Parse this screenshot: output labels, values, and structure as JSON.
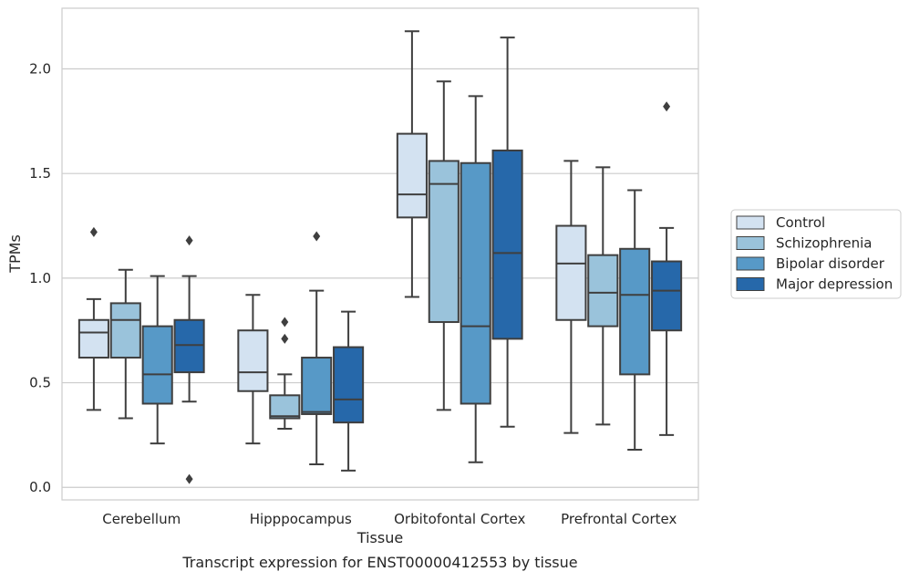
{
  "chart_data": {
    "type": "box",
    "title": "",
    "caption": "Transcript expression for ENST00000412553 by tissue",
    "xlabel": "Tissue",
    "ylabel": "TPMs",
    "ylim": [
      -0.06,
      2.29
    ],
    "yticks": [
      0.0,
      0.5,
      1.0,
      1.5,
      2.0
    ],
    "ytick_labels": [
      "0.0",
      "0.5",
      "1.0",
      "1.5",
      "2.0"
    ],
    "grid": "horizontal",
    "legend_position": "right",
    "categories": [
      "Cerebellum",
      "Hipppocampus",
      "Orbitofontal Cortex",
      "Prefrontal Cortex"
    ],
    "series": [
      {
        "name": "Control",
        "color": "#d3e2f1",
        "boxes": [
          {
            "whislo": 0.37,
            "q1": 0.62,
            "med": 0.74,
            "q3": 0.8,
            "whishi": 0.9,
            "fliers": [
              1.22
            ]
          },
          {
            "whislo": 0.21,
            "q1": 0.46,
            "med": 0.55,
            "q3": 0.75,
            "whishi": 0.92,
            "fliers": []
          },
          {
            "whislo": 0.91,
            "q1": 1.29,
            "med": 1.4,
            "q3": 1.69,
            "whishi": 2.18,
            "fliers": []
          },
          {
            "whislo": 0.26,
            "q1": 0.8,
            "med": 1.07,
            "q3": 1.25,
            "whishi": 1.56,
            "fliers": []
          }
        ]
      },
      {
        "name": "Schizophrenia",
        "color": "#9ac3db",
        "boxes": [
          {
            "whislo": 0.33,
            "q1": 0.62,
            "med": 0.8,
            "q3": 0.88,
            "whishi": 1.04,
            "fliers": []
          },
          {
            "whislo": 0.28,
            "q1": 0.33,
            "med": 0.34,
            "q3": 0.44,
            "whishi": 0.54,
            "fliers": [
              0.71,
              0.79
            ]
          },
          {
            "whislo": 0.37,
            "q1": 0.79,
            "med": 1.45,
            "q3": 1.56,
            "whishi": 1.94,
            "fliers": []
          },
          {
            "whislo": 0.3,
            "q1": 0.77,
            "med": 0.93,
            "q3": 1.11,
            "whishi": 1.53,
            "fliers": []
          }
        ]
      },
      {
        "name": "Bipolar disorder",
        "color": "#5799c7",
        "boxes": [
          {
            "whislo": 0.21,
            "q1": 0.4,
            "med": 0.54,
            "q3": 0.77,
            "whishi": 1.01,
            "fliers": []
          },
          {
            "whislo": 0.11,
            "q1": 0.35,
            "med": 0.36,
            "q3": 0.62,
            "whishi": 0.94,
            "fliers": [
              1.2
            ]
          },
          {
            "whislo": 0.12,
            "q1": 0.4,
            "med": 0.77,
            "q3": 1.55,
            "whishi": 1.87,
            "fliers": []
          },
          {
            "whislo": 0.18,
            "q1": 0.54,
            "med": 0.92,
            "q3": 1.14,
            "whishi": 1.42,
            "fliers": []
          }
        ]
      },
      {
        "name": "Major depression",
        "color": "#2668aa",
        "boxes": [
          {
            "whislo": 0.41,
            "q1": 0.55,
            "med": 0.68,
            "q3": 0.8,
            "whishi": 1.01,
            "fliers": [
              1.18,
              0.04
            ]
          },
          {
            "whislo": 0.08,
            "q1": 0.31,
            "med": 0.42,
            "q3": 0.67,
            "whishi": 0.84,
            "fliers": []
          },
          {
            "whislo": 0.29,
            "q1": 0.71,
            "med": 1.12,
            "q3": 1.61,
            "whishi": 2.15,
            "fliers": []
          },
          {
            "whislo": 0.25,
            "q1": 0.75,
            "med": 0.94,
            "q3": 1.08,
            "whishi": 1.24,
            "fliers": [
              1.82
            ]
          }
        ]
      }
    ],
    "colors": {
      "box_edge": "#3f3f3f",
      "grid": "#cccccc",
      "spine": "#cccccc",
      "text": "#262626"
    }
  }
}
